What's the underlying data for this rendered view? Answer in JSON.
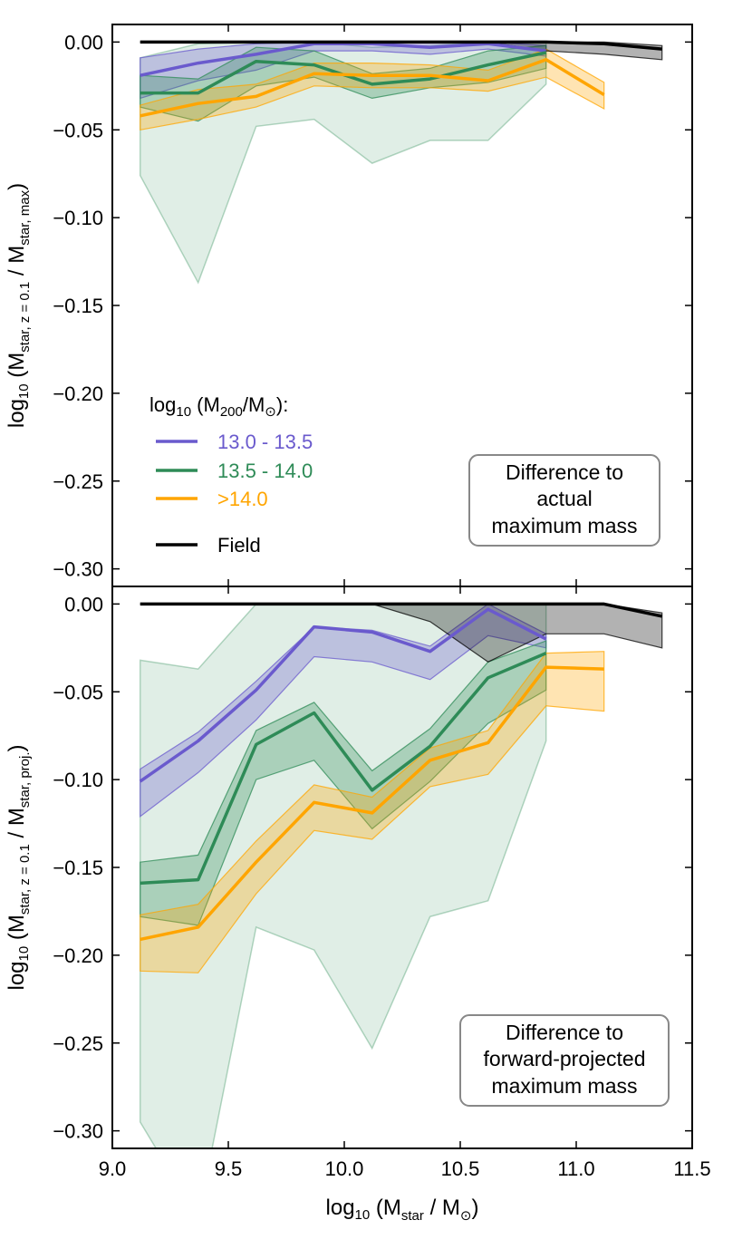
{
  "chart_data": [
    {
      "type": "line",
      "panel": "top",
      "ylabel": "log10 (Mstar, z=0.1 / Mstar, max)",
      "xlim": [
        9.0,
        11.5
      ],
      "ylim": [
        -0.31,
        0.01
      ],
      "yticks": [
        0.0,
        -0.05,
        -0.1,
        -0.15,
        -0.2,
        -0.25,
        -0.3
      ],
      "ytick_labels": [
        "0.00",
        "−0.05",
        "−0.10",
        "−0.15",
        "−0.20",
        "−0.25",
        "−0.30"
      ],
      "legend": {
        "title": "log10 (M200/M⊙):",
        "placement": "center-left",
        "entries": [
          "13.0 - 13.5",
          "13.5 - 14.0",
          ">14.0",
          "Field"
        ]
      },
      "annotation": [
        "Difference to",
        "actual",
        "maximum mass"
      ],
      "series": [
        {
          "name": "13.0 - 13.5",
          "color": "#6a5acd",
          "x": [
            9.12,
            9.37,
            9.62,
            9.87,
            10.12,
            10.37,
            10.62,
            10.87
          ],
          "y": [
            -0.019,
            -0.012,
            -0.007,
            -0.001,
            -0.001,
            -0.003,
            -0.001,
            -0.005
          ],
          "lower": [
            -0.032,
            -0.022,
            -0.016,
            -0.005,
            -0.005,
            -0.007,
            -0.004,
            -0.008
          ],
          "upper": [
            -0.009,
            -0.004,
            -0.001,
            0.0,
            0.0,
            0.0,
            0.0,
            -0.002
          ]
        },
        {
          "name": "13.5 - 14.0",
          "color": "#2e8b57",
          "x": [
            9.12,
            9.37,
            9.62,
            9.87,
            10.12,
            10.37,
            10.62,
            10.87
          ],
          "y": [
            -0.029,
            -0.029,
            -0.011,
            -0.013,
            -0.024,
            -0.021,
            -0.013,
            -0.006
          ],
          "lower": [
            -0.037,
            -0.045,
            -0.025,
            -0.02,
            -0.032,
            -0.026,
            -0.023,
            -0.015
          ],
          "upper": [
            -0.019,
            -0.021,
            -0.003,
            -0.005,
            -0.018,
            -0.015,
            -0.005,
            -0.002
          ],
          "outer_lower": [
            -0.076,
            -0.137,
            -0.048,
            -0.044,
            -0.069,
            -0.056,
            -0.056,
            -0.024
          ],
          "outer_upper": [
            -0.009,
            -0.001,
            0.0,
            0.0,
            -0.003,
            -0.002,
            0.0,
            0.0
          ]
        },
        {
          "name": ">14.0",
          "color": "#ffa500",
          "x": [
            9.12,
            9.37,
            9.62,
            9.87,
            10.12,
            10.37,
            10.62,
            10.87,
            11.12
          ],
          "y": [
            -0.042,
            -0.035,
            -0.031,
            -0.018,
            -0.019,
            -0.019,
            -0.022,
            -0.01,
            -0.03
          ],
          "lower": [
            -0.05,
            -0.044,
            -0.037,
            -0.025,
            -0.026,
            -0.026,
            -0.028,
            -0.02,
            -0.038
          ],
          "upper": [
            -0.036,
            -0.027,
            -0.024,
            -0.012,
            -0.012,
            -0.013,
            -0.016,
            -0.004,
            -0.023
          ]
        },
        {
          "name": "Field",
          "color": "#000000",
          "x": [
            9.12,
            9.37,
            9.62,
            9.87,
            10.12,
            10.37,
            10.62,
            10.87,
            11.12,
            11.37
          ],
          "y": [
            0.0,
            0.0,
            0.0,
            0.0,
            0.0,
            0.0,
            0.0,
            0.0,
            -0.001,
            -0.004
          ],
          "lower": [
            0.0,
            0.0,
            0.0,
            0.0,
            0.0,
            0.0,
            0.0,
            -0.005,
            -0.007,
            -0.01
          ],
          "upper": [
            0.0,
            0.0,
            0.0,
            0.0,
            0.0,
            0.0,
            0.0,
            0.0,
            0.0,
            -0.002
          ]
        }
      ]
    },
    {
      "type": "line",
      "panel": "bottom",
      "xlabel": "log10 (Mstar / M⊙)",
      "ylabel": "log10 (Mstar, z=0.1 / Mstar, proj.)",
      "xlim": [
        9.0,
        11.5
      ],
      "ylim": [
        -0.31,
        0.01
      ],
      "xticks": [
        9.0,
        9.5,
        10.0,
        10.5,
        11.0,
        11.5
      ],
      "xtick_labels": [
        "9.0",
        "9.5",
        "10.0",
        "10.5",
        "11.0",
        "11.5"
      ],
      "yticks": [
        0.0,
        -0.05,
        -0.1,
        -0.15,
        -0.2,
        -0.25,
        -0.3
      ],
      "ytick_labels": [
        "0.00",
        "−0.05",
        "−0.10",
        "−0.15",
        "−0.20",
        "−0.25",
        "−0.30"
      ],
      "annotation": [
        "Difference to",
        "forward-projected",
        "maximum mass"
      ],
      "series": [
        {
          "name": "13.0 - 13.5",
          "color": "#6a5acd",
          "x": [
            9.12,
            9.37,
            9.62,
            9.87,
            10.12,
            10.37,
            10.62,
            10.87
          ],
          "y": [
            -0.101,
            -0.078,
            -0.049,
            -0.013,
            -0.016,
            -0.027,
            -0.003,
            -0.02
          ],
          "lower": [
            -0.121,
            -0.096,
            -0.066,
            -0.03,
            -0.033,
            -0.043,
            -0.018,
            -0.025
          ],
          "upper": [
            -0.094,
            -0.073,
            -0.044,
            -0.013,
            -0.015,
            -0.024,
            0.0,
            -0.017
          ]
        },
        {
          "name": "13.5 - 14.0",
          "color": "#2e8b57",
          "x": [
            9.12,
            9.37,
            9.62,
            9.87,
            10.12,
            10.37,
            10.62,
            10.87
          ],
          "y": [
            -0.159,
            -0.157,
            -0.08,
            -0.062,
            -0.106,
            -0.081,
            -0.042,
            -0.028
          ],
          "lower": [
            -0.178,
            -0.183,
            -0.1,
            -0.089,
            -0.128,
            -0.101,
            -0.068,
            -0.049
          ],
          "upper": [
            -0.147,
            -0.143,
            -0.072,
            -0.056,
            -0.095,
            -0.071,
            -0.033,
            -0.021
          ],
          "outer_lower": [
            -0.295,
            -0.35,
            -0.184,
            -0.197,
            -0.253,
            -0.178,
            -0.169,
            -0.078
          ],
          "outer_upper": [
            -0.032,
            -0.037,
            0.0,
            0.0,
            0.0,
            0.0,
            0.0,
            0.0
          ]
        },
        {
          "name": ">14.0",
          "color": "#ffa500",
          "x": [
            9.12,
            9.37,
            9.62,
            9.87,
            10.12,
            10.37,
            10.62,
            10.87,
            11.12
          ],
          "y": [
            -0.191,
            -0.184,
            -0.147,
            -0.113,
            -0.119,
            -0.089,
            -0.079,
            -0.036,
            -0.037
          ],
          "lower": [
            -0.209,
            -0.21,
            -0.165,
            -0.129,
            -0.134,
            -0.104,
            -0.097,
            -0.058,
            -0.061
          ],
          "upper": [
            -0.177,
            -0.171,
            -0.135,
            -0.103,
            -0.11,
            -0.082,
            -0.072,
            -0.028,
            -0.027
          ]
        },
        {
          "name": "Field",
          "color": "#000000",
          "x": [
            9.12,
            9.37,
            9.62,
            9.87,
            10.12,
            10.37,
            10.62,
            10.87,
            11.12,
            11.37
          ],
          "y": [
            0.0,
            0.0,
            0.0,
            0.0,
            0.0,
            0.0,
            0.0,
            0.0,
            0.0,
            -0.007
          ],
          "lower": [
            0.0,
            0.0,
            0.0,
            0.0,
            0.0,
            -0.01,
            -0.033,
            -0.017,
            -0.017,
            -0.025
          ],
          "upper": [
            0.0,
            0.0,
            0.0,
            0.0,
            0.0,
            0.0,
            0.0,
            0.0,
            0.0,
            -0.005
          ]
        }
      ]
    }
  ]
}
